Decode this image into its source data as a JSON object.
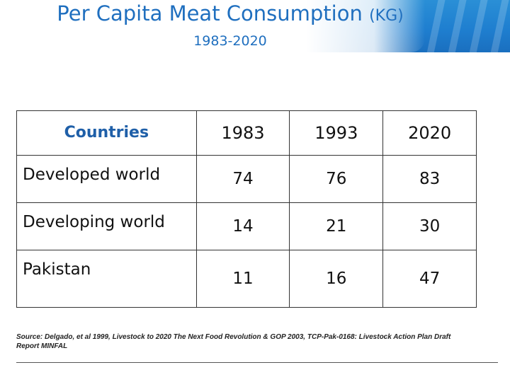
{
  "header": {
    "title": "Per Capita Meat Consumption",
    "title_unit": "(KG)",
    "subtitle": "1983-2020"
  },
  "table": {
    "columns": [
      "Countries",
      "1983",
      "1993",
      "2020"
    ],
    "rows": [
      {
        "name": "Developed world",
        "v1983": "74",
        "v1993": "76",
        "v2020": "83"
      },
      {
        "name": "Developing world",
        "v1983": "14",
        "v1993": "21",
        "v2020": "30"
      },
      {
        "name": "Pakistan",
        "v1983": "11",
        "v1993": "16",
        "v2020": "47"
      }
    ]
  },
  "source": "Source: Delgado, et al 1999, Livestock to 2020 The Next Food Revolution & GOP 2003, TCP-Pak-0168: Livestock Action Plan Draft Report MINFAL",
  "colors": {
    "header_blue": "#1f7fd0",
    "title_blue": "#1f6fbf",
    "header_text": "#1f5fa8"
  }
}
